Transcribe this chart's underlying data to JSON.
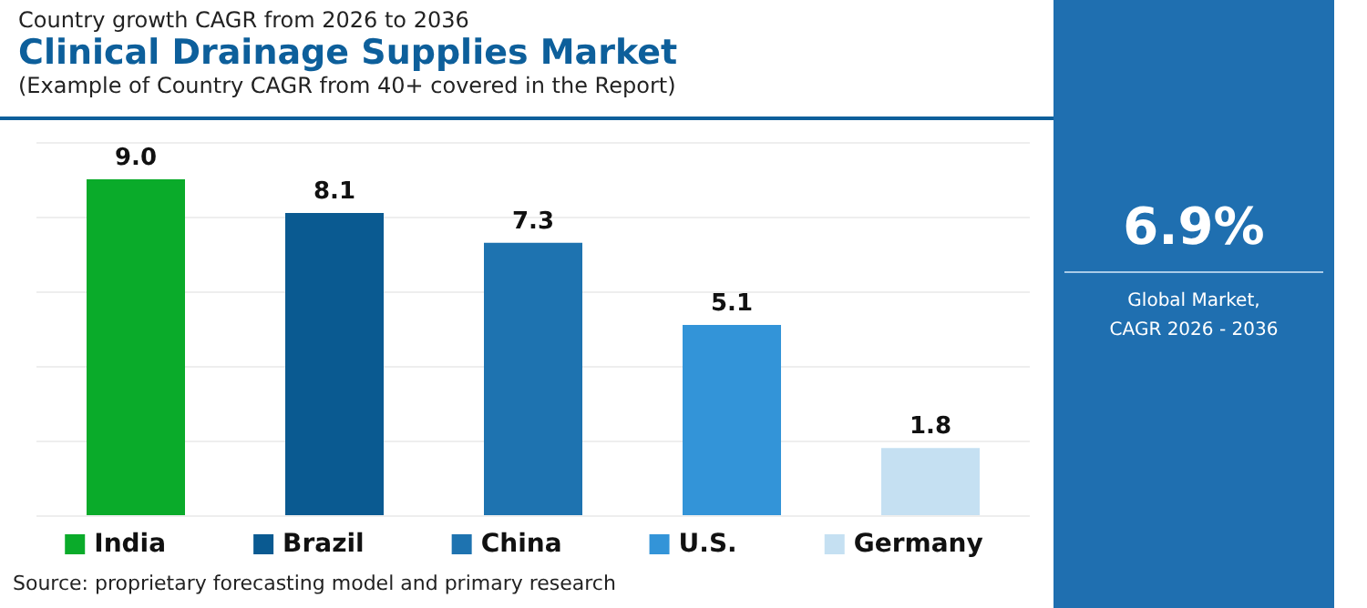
{
  "chart_data": [
    {
      "type": "bar",
      "title": "Clinical Drainage Supplies Market",
      "subtitle": "(Example of Country CAGR from 40+ covered in the Report)",
      "annotations": [
        "Country growth CAGR from 2026 to 2036",
        "Source: proprietary forecasting model and primary research"
      ],
      "categories": [
        null,
        null,
        null,
        null,
        null
      ],
      "series": [
        {
          "name": "India",
          "color": "#0aab2a",
          "values": [
            9.0,
            null,
            null,
            null,
            null
          ],
          "value_labels": [
            "9.0",
            null,
            null,
            null,
            null
          ]
        },
        {
          "name": "Brazil",
          "color": "#0a5a91",
          "values": [
            null,
            8.1,
            null,
            null,
            null
          ],
          "value_labels": [
            null,
            "8.1",
            null,
            null,
            null
          ]
        },
        {
          "name": "China",
          "color": "#1e73b0",
          "values": [
            null,
            null,
            7.3,
            null,
            null
          ],
          "value_labels": [
            null,
            null,
            "7.3",
            null,
            null
          ]
        },
        {
          "name": "U.S.",
          "color": "#3394d8",
          "values": [
            null,
            null,
            null,
            5.1,
            null
          ],
          "value_labels": [
            null,
            null,
            null,
            "5.1",
            null
          ]
        },
        {
          "name": "Germany",
          "color": "#c5e0f2",
          "values": [
            null,
            null,
            null,
            null,
            1.8
          ],
          "value_labels": [
            null,
            null,
            null,
            null,
            "1.8"
          ]
        }
      ],
      "ylim": [
        0,
        10
      ],
      "yticks": [
        {
          "value": 0,
          "label": null
        },
        {
          "value": 2,
          "label": null
        },
        {
          "value": 4,
          "label": null
        },
        {
          "value": 6,
          "label": null
        },
        {
          "value": 8,
          "label": null
        },
        {
          "value": 10,
          "label": null
        }
      ],
      "grid": "y",
      "legend": "bottom",
      "stacked": true
    },
    {
      "type": "other",
      "annotations": [
        "6.9%",
        "Global Market,",
        "CAGR 2026 - 2036"
      ]
    }
  ]
}
